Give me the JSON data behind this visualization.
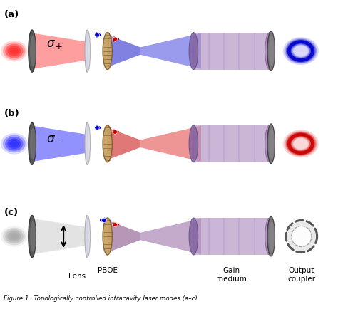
{
  "title": "Figure 1",
  "caption": "Figure 1. Topologically controlled intracavity laser modes (a–c)",
  "background_color": "#ffffff",
  "panels": [
    "(a)",
    "(b)",
    "(c)"
  ],
  "sigma_plus": "σ+",
  "sigma_minus": "σ−",
  "labels": {
    "PBOE": "PBOE",
    "Lens": "Lens",
    "Gain_medium": "Gain\nmedium",
    "Output_coupler": "Output\ncoupler"
  },
  "colors": {
    "red_beam": "#ff2020",
    "blue_beam": "#2040ff",
    "dark_red": "#aa0000",
    "dark_blue": "#0000aa",
    "lens_gray": "#c8c8c8",
    "mirror_dark": "#555555",
    "gain_medium_purple": "#b090c0",
    "pboe_brown": "#c8a060",
    "donut_red": "#cc0000",
    "donut_blue": "#0000cc",
    "arrow_red": "#cc0000",
    "arrow_blue": "#0000cc"
  },
  "fig_width": 4.74,
  "fig_height": 4.34,
  "dpi": 100
}
